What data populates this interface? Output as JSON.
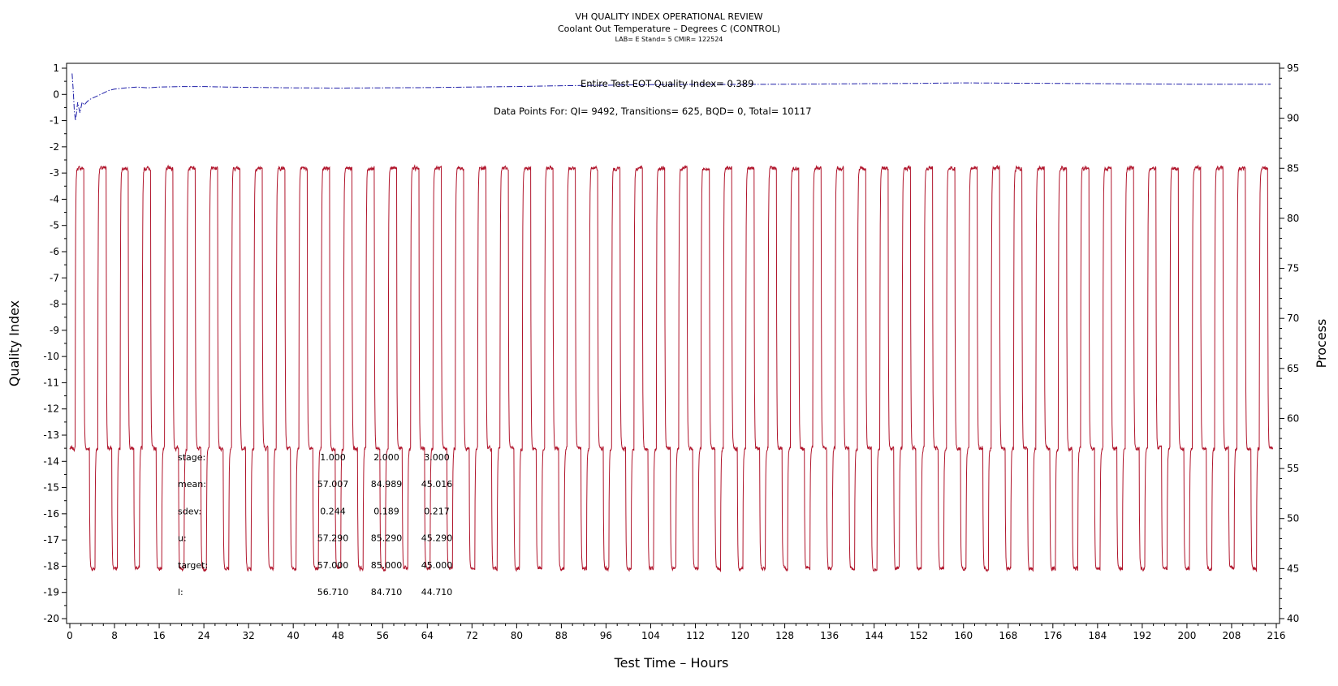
{
  "chart_data": {
    "type": "line",
    "title": "VH QUALITY INDEX OPERATIONAL REVIEW",
    "subtitle": "Coolant Out Temperature – Degrees C (CONTROL)",
    "subtitle2": "LAB= E Stand= 5 CMIR= 122524",
    "xlabel": "Test Time – Hours",
    "ylabel_left": "Quality Index",
    "ylabel_right": "Process",
    "xlim": [
      0,
      216
    ],
    "ylim_left": [
      -20,
      1
    ],
    "ylim_right": [
      40,
      95
    ],
    "x_ticks": [
      0,
      8,
      16,
      24,
      32,
      40,
      48,
      56,
      64,
      72,
      80,
      88,
      96,
      104,
      112,
      120,
      128,
      136,
      144,
      152,
      160,
      168,
      176,
      184,
      192,
      200,
      208,
      216
    ],
    "y_left_ticks": [
      1,
      0,
      -1,
      -2,
      -3,
      -4,
      -5,
      -6,
      -7,
      -8,
      -9,
      -10,
      -11,
      -12,
      -13,
      -14,
      -15,
      -16,
      -17,
      -18,
      -19,
      -20
    ],
    "y_right_ticks": [
      95,
      90,
      85,
      80,
      75,
      70,
      65,
      60,
      55,
      50,
      45,
      40
    ],
    "quality_index_note": "Entire Test EOT Quality Index=  0.389",
    "data_points_note": "Data Points For: QI=  9492, Transitions=   625, BQD=     0, Total= 10117",
    "series": [
      {
        "name": "Quality Index",
        "axis": "left",
        "color": "#1f1fa8",
        "style": "dash-dot",
        "x": [
          0.4,
          0.6,
          0.8,
          1.0,
          1.2,
          1.4,
          1.6,
          1.8,
          2.0,
          2.2,
          2.6,
          3.0,
          3.5,
          4,
          5,
          6,
          7,
          8,
          10,
          12,
          14,
          16,
          20,
          24,
          28,
          32,
          40,
          48,
          56,
          64,
          72,
          80,
          88,
          96,
          104,
          112,
          120,
          128,
          136,
          144,
          152,
          160,
          168,
          176,
          184,
          192,
          200,
          208,
          215
        ],
        "y": [
          0.8,
          0.2,
          -0.6,
          -1.0,
          -0.7,
          -0.3,
          -0.5,
          -0.7,
          -0.5,
          -0.3,
          -0.4,
          -0.3,
          -0.2,
          -0.15,
          -0.05,
          0.05,
          0.15,
          0.2,
          0.25,
          0.28,
          0.25,
          0.28,
          0.3,
          0.3,
          0.28,
          0.27,
          0.25,
          0.24,
          0.25,
          0.26,
          0.28,
          0.3,
          0.33,
          0.35,
          0.37,
          0.38,
          0.38,
          0.39,
          0.4,
          0.41,
          0.42,
          0.44,
          0.43,
          0.42,
          0.41,
          0.4,
          0.39,
          0.389,
          0.389
        ]
      },
      {
        "name": "Process",
        "axis": "right",
        "color": "#b0142b",
        "style": "solid",
        "stages": [
          {
            "stage": "1",
            "level": 57.0
          },
          {
            "stage": "2",
            "level": 85.0
          },
          {
            "stage": "3",
            "level": 45.0
          }
        ],
        "cycle_hours": 4.0,
        "first_cycle_start": 0.5,
        "phase_order": [
          "1",
          "2",
          "1",
          "3"
        ],
        "phase_durations_hours": [
          0.5,
          1.5,
          1.0,
          1.0
        ]
      }
    ],
    "stats": {
      "labels": [
        "stage:",
        "mean:",
        "sdev:",
        "u:",
        "target:",
        "l:"
      ],
      "columns": [
        [
          "1.000",
          "57.007",
          "0.244",
          "57.290",
          "57.000",
          "56.710"
        ],
        [
          "2.000",
          "84.989",
          "0.189",
          "85.290",
          "85.000",
          "84.710"
        ],
        [
          "3.000",
          "45.016",
          "0.217",
          "45.290",
          "45.000",
          "44.710"
        ]
      ]
    }
  }
}
